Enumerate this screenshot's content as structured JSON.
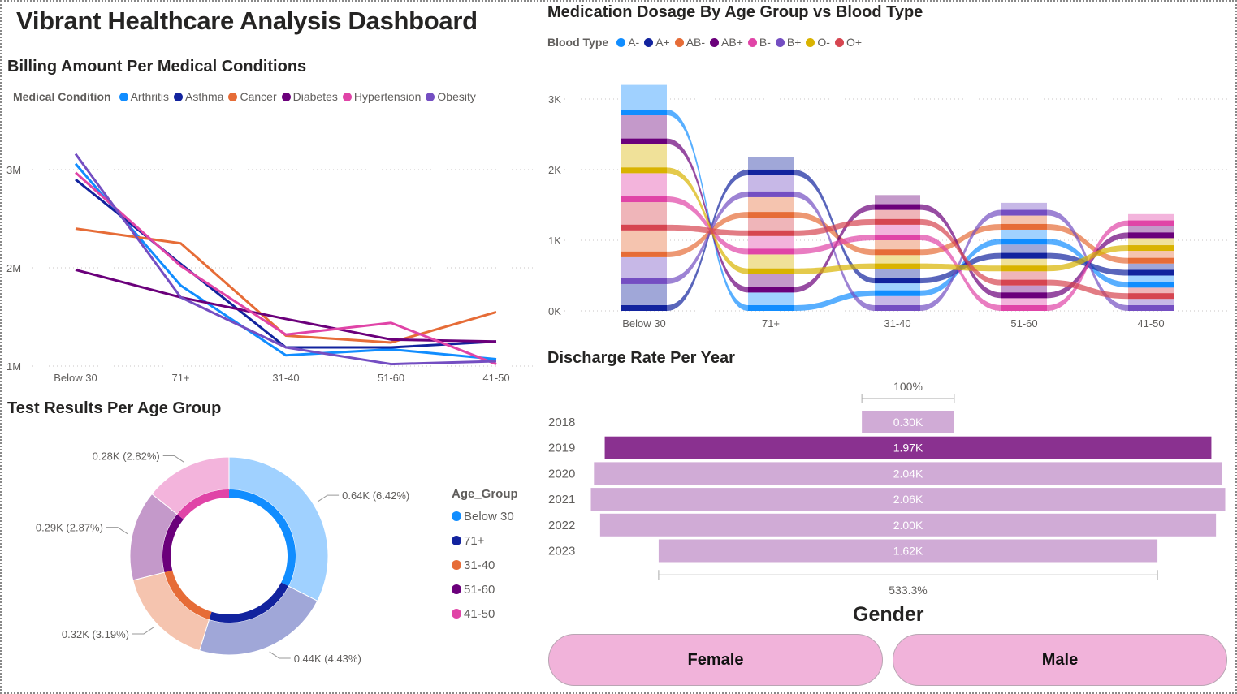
{
  "dashboard": {
    "title": "Vibrant Healthcare Analysis Dashboard"
  },
  "gender_slicer": {
    "title": "Gender",
    "options": [
      "Female",
      "Male"
    ],
    "color": "#F1B3DA"
  },
  "chart_data": [
    {
      "id": "billing",
      "type": "line",
      "title": "Billing Amount Per Medical Conditions",
      "legend_title": "Medical Condition",
      "legend_position": "top-left",
      "categories": [
        "Below 30",
        "71+",
        "31-40",
        "51-60",
        "41-50"
      ],
      "y_ticks": [
        "1M",
        "2M",
        "3M"
      ],
      "ylim": [
        1,
        3.3
      ],
      "units": "millions",
      "grid": true,
      "series": [
        {
          "name": "Arthritis",
          "color": "#118DFF",
          "values": [
            3.06,
            1.82,
            1.11,
            1.17,
            1.07
          ]
        },
        {
          "name": "Asthma",
          "color": "#12239E",
          "values": [
            2.9,
            2.04,
            1.19,
            1.19,
            1.25
          ]
        },
        {
          "name": "Cancer",
          "color": "#E66C37",
          "values": [
            2.4,
            2.25,
            1.31,
            1.24,
            1.55
          ]
        },
        {
          "name": "Diabetes",
          "color": "#6B007B",
          "values": [
            1.98,
            1.7,
            1.48,
            1.27,
            1.25
          ]
        },
        {
          "name": "Hypertension",
          "color": "#E044A7",
          "values": [
            2.97,
            2.02,
            1.32,
            1.44,
            1.02
          ]
        },
        {
          "name": "Obesity",
          "color": "#744EC2",
          "values": [
            3.16,
            1.7,
            1.19,
            1.02,
            1.05
          ]
        }
      ]
    },
    {
      "id": "dosage",
      "type": "ribbon",
      "title": "Medication Dosage By Age Group vs Blood Type",
      "legend_title": "Blood Type",
      "legend_position": "top-left",
      "categories": [
        "Below 30",
        "71+",
        "31-40",
        "51-60",
        "41-50"
      ],
      "y_ticks": [
        "0K",
        "1K",
        "2K",
        "3K"
      ],
      "ylim": [
        0,
        3.3
      ],
      "units": "thousands",
      "grid": true,
      "series": [
        {
          "name": "A-",
          "color": "#118DFF",
          "values": [
            0.43,
            0.26,
            0.18,
            0.21,
            0.17
          ]
        },
        {
          "name": "A+",
          "color": "#12239E",
          "values": [
            0.38,
            0.26,
            0.2,
            0.2,
            0.17
          ]
        },
        {
          "name": "AB-",
          "color": "#E66C37",
          "values": [
            0.38,
            0.29,
            0.21,
            0.2,
            0.18
          ]
        },
        {
          "name": "AB+",
          "color": "#6B007B",
          "values": [
            0.41,
            0.26,
            0.21,
            0.18,
            0.17
          ]
        },
        {
          "name": "B-",
          "color": "#E044A7",
          "values": [
            0.41,
            0.26,
            0.22,
            0.18,
            0.17
          ]
        },
        {
          "name": "B+",
          "color": "#744EC2",
          "values": [
            0.38,
            0.31,
            0.21,
            0.18,
            0.17
          ]
        },
        {
          "name": "O-",
          "color": "#D9B300",
          "values": [
            0.41,
            0.28,
            0.2,
            0.18,
            0.18
          ]
        },
        {
          "name": "O+",
          "color": "#D64550",
          "values": [
            0.4,
            0.26,
            0.21,
            0.2,
            0.16
          ]
        }
      ],
      "stack_order_bottom_to_top": [
        [
          "A+",
          "B+",
          "AB-",
          "O+",
          "B-",
          "O-",
          "AB+",
          "A-"
        ],
        [
          "A-",
          "AB+",
          "O-",
          "B-",
          "O+",
          "AB-",
          "B+",
          "A+"
        ],
        [
          "B+",
          "A-",
          "A+",
          "O-",
          "AB-",
          "B-",
          "O+",
          "AB+"
        ],
        [
          "B-",
          "AB+",
          "O+",
          "O-",
          "A+",
          "A-",
          "AB-",
          "B+"
        ],
        [
          "B+",
          "O+",
          "A-",
          "A+",
          "AB-",
          "O-",
          "AB+",
          "B-"
        ]
      ]
    },
    {
      "id": "test_results",
      "type": "pie",
      "subtype": "donut",
      "title": "Test Results Per Age Group",
      "legend_title": "Age_Group",
      "legend_position": "right",
      "slices": [
        {
          "label": "Below 30",
          "color": "#118DFF",
          "light": "#A0D1FF",
          "value": 0.64,
          "data_label": "0.64K (6.42%)"
        },
        {
          "label": "71+",
          "color": "#12239E",
          "light": "#A0A7D8",
          "value": 0.44,
          "data_label": "0.44K (4.43%)"
        },
        {
          "label": "31-40",
          "color": "#E66C37",
          "light": "#F5C4AF",
          "value": 0.32,
          "data_label": "0.32K (3.19%)"
        },
        {
          "label": "51-60",
          "color": "#6B007B",
          "light": "#C499CA",
          "value": 0.29,
          "data_label": "0.29K (2.87%)"
        },
        {
          "label": "41-50",
          "color": "#E044A7",
          "light": "#F3B4DC",
          "value": 0.28,
          "data_label": "0.28K (2.82%)"
        }
      ]
    },
    {
      "id": "discharge",
      "type": "bar",
      "subtype": "funnel",
      "title": "Discharge Rate Per Year",
      "categories": [
        "2018",
        "2019",
        "2020",
        "2021",
        "2022",
        "2023"
      ],
      "values": [
        0.3,
        1.97,
        2.04,
        2.06,
        2.0,
        1.62
      ],
      "data_labels": [
        "0.30K",
        "1.97K",
        "2.04K",
        "2.06K",
        "2.00K",
        "1.62K"
      ],
      "highlighted": "2019",
      "highlight_color": "#8A3190",
      "bar_color": "#D0ABD6",
      "top_annotation": "100%",
      "bottom_annotation": "533.3%"
    }
  ]
}
